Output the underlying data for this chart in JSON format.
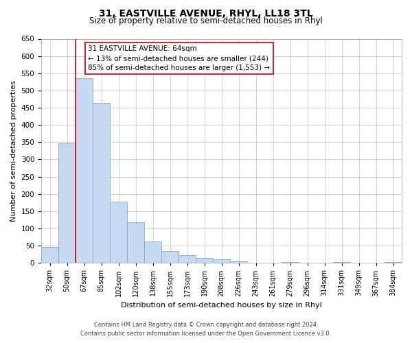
{
  "title": "31, EASTVILLE AVENUE, RHYL, LL18 3TL",
  "subtitle": "Size of property relative to semi-detached houses in Rhyl",
  "xlabel": "Distribution of semi-detached houses by size in Rhyl",
  "ylabel": "Number of semi-detached properties",
  "bin_labels": [
    "32sqm",
    "50sqm",
    "67sqm",
    "85sqm",
    "102sqm",
    "120sqm",
    "138sqm",
    "155sqm",
    "173sqm",
    "190sqm",
    "208sqm",
    "226sqm",
    "243sqm",
    "261sqm",
    "279sqm",
    "296sqm",
    "314sqm",
    "331sqm",
    "349sqm",
    "367sqm",
    "384sqm"
  ],
  "bin_values": [
    47,
    347,
    535,
    465,
    178,
    118,
    62,
    35,
    22,
    15,
    10,
    5,
    0,
    0,
    3,
    0,
    0,
    2,
    0,
    0,
    3
  ],
  "bar_color": "#c6d9f0",
  "bar_edge_color": "#7da6d1",
  "marker_label": "31 EASTVILLE AVENUE: 64sqm",
  "marker_line_color": "#cc0000",
  "annotation_smaller": "← 13% of semi-detached houses are smaller (244)",
  "annotation_larger": "85% of semi-detached houses are larger (1,553) →",
  "annotation_box_color": "#ffffff",
  "annotation_box_edge": "#cc0000",
  "ylim": [
    0,
    650
  ],
  "yticks": [
    0,
    50,
    100,
    150,
    200,
    250,
    300,
    350,
    400,
    450,
    500,
    550,
    600,
    650
  ],
  "footnote1": "Contains HM Land Registry data © Crown copyright and database right 2024.",
  "footnote2": "Contains public sector information licensed under the Open Government Licence v3.0.",
  "background_color": "#ffffff",
  "grid_color": "#c8c8c8"
}
